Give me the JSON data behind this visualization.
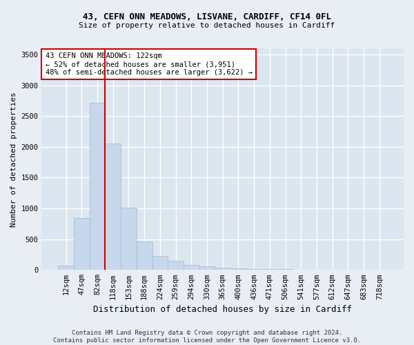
{
  "title1": "43, CEFN ONN MEADOWS, LISVANE, CARDIFF, CF14 0FL",
  "title2": "Size of property relative to detached houses in Cardiff",
  "xlabel": "Distribution of detached houses by size in Cardiff",
  "ylabel": "Number of detached properties",
  "categories": [
    "12sqm",
    "47sqm",
    "82sqm",
    "118sqm",
    "153sqm",
    "188sqm",
    "224sqm",
    "259sqm",
    "294sqm",
    "330sqm",
    "365sqm",
    "400sqm",
    "436sqm",
    "471sqm",
    "506sqm",
    "541sqm",
    "577sqm",
    "612sqm",
    "647sqm",
    "683sqm",
    "718sqm"
  ],
  "values": [
    70,
    840,
    2720,
    2050,
    1010,
    460,
    230,
    150,
    80,
    55,
    40,
    30,
    20,
    15,
    10,
    8,
    6,
    5,
    4,
    3,
    2
  ],
  "bar_color": "#c8d8ec",
  "bar_edge_color": "#a0b8d0",
  "vline_color": "#cc0000",
  "vline_x_index": 2.5,
  "annotation_text": "43 CEFN ONN MEADOWS: 122sqm\n← 52% of detached houses are smaller (3,951)\n48% of semi-detached houses are larger (3,622) →",
  "annotation_box_facecolor": "#ffffff",
  "annotation_box_edgecolor": "#cc0000",
  "ylim": [
    0,
    3600
  ],
  "yticks": [
    0,
    500,
    1000,
    1500,
    2000,
    2500,
    3000,
    3500
  ],
  "footnote": "Contains HM Land Registry data © Crown copyright and database right 2024.\nContains public sector information licensed under the Open Government Licence v3.0.",
  "bg_color": "#e8eef4",
  "plot_bg_color": "#dce6f0",
  "grid_color": "#ffffff",
  "title1_fontsize": 9,
  "title2_fontsize": 8,
  "ylabel_fontsize": 8,
  "xlabel_fontsize": 9,
  "tick_fontsize": 7.5,
  "footnote_fontsize": 6.5
}
